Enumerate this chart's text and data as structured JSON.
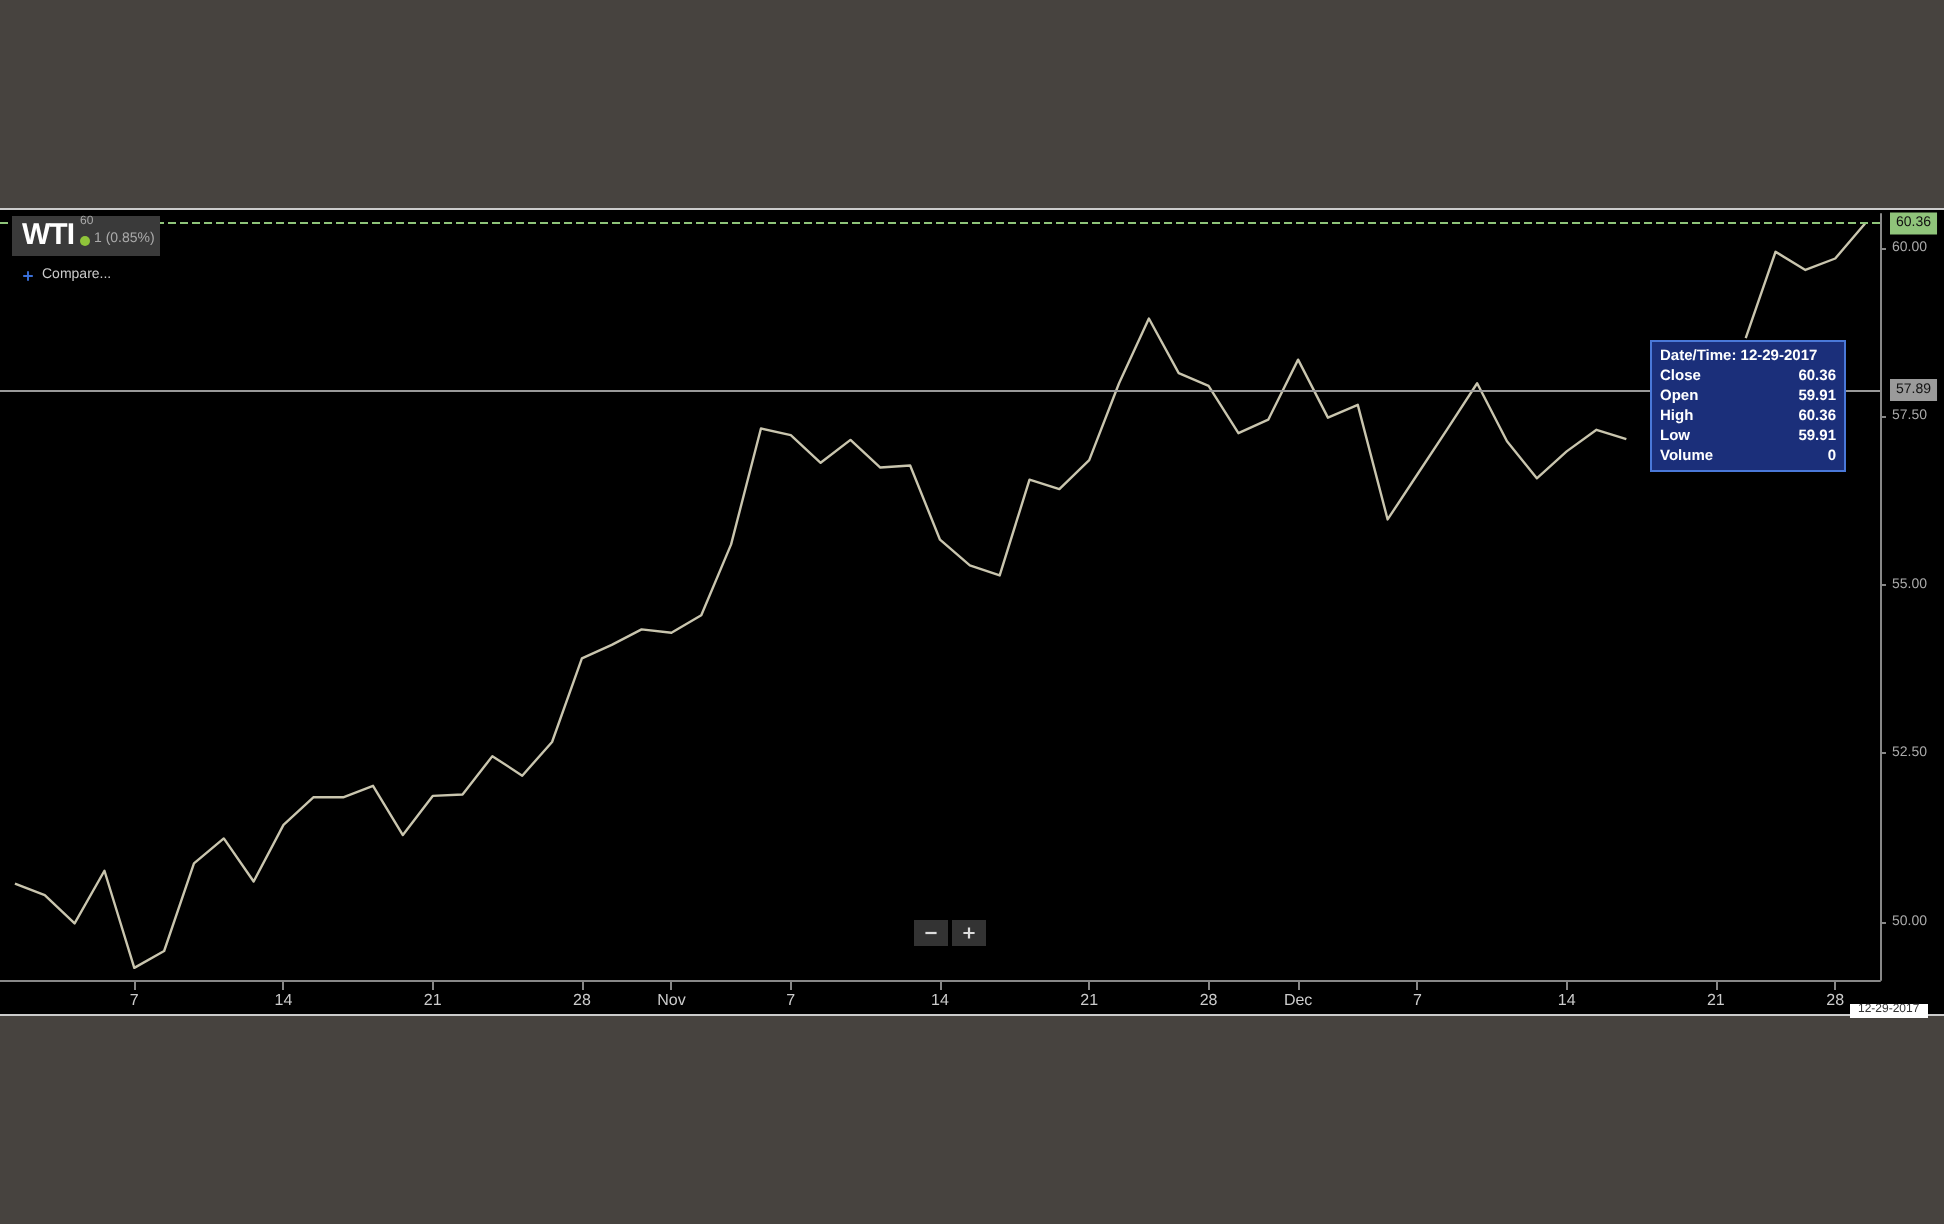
{
  "chart_data": {
    "type": "line",
    "title": "WTI",
    "subtitle": "60",
    "categories": [
      null,
      null,
      null,
      null,
      "7",
      null,
      null,
      null,
      null,
      "14",
      null,
      null,
      null,
      null,
      "21",
      null,
      null,
      null,
      null,
      "28",
      null,
      null,
      "Nov",
      null,
      null,
      null,
      "7",
      null,
      null,
      null,
      null,
      "14",
      null,
      null,
      null,
      null,
      "21",
      null,
      null,
      null,
      "28",
      null,
      null,
      "Dec",
      null,
      null,
      null,
      "7",
      null,
      null,
      null,
      null,
      "14",
      null,
      null,
      null,
      null,
      "21",
      null,
      null,
      null,
      "28",
      null
    ],
    "series": [
      {
        "color": "#c9c5ae",
        "values": [
          50.57,
          50.4,
          49.98,
          50.76,
          49.32,
          49.57,
          50.87,
          51.24,
          50.6,
          51.44,
          51.85,
          51.85,
          52.02,
          51.29,
          51.87,
          51.89,
          52.46,
          52.17,
          52.67,
          53.91,
          54.11,
          54.34,
          54.29,
          54.55,
          55.6,
          57.32,
          57.22,
          56.81,
          57.15,
          56.74,
          56.77,
          55.67,
          55.29,
          55.14,
          56.56,
          56.42,
          56.85,
          57.99,
          58.95,
          58.14,
          57.95,
          57.25,
          57.45,
          58.34,
          57.48,
          57.67,
          55.97,
          56.64,
          57.31,
          57.99,
          57.13,
          56.58,
          56.98,
          57.3,
          57.16,
          null,
          null,
          null,
          58.66,
          59.94,
          59.67,
          59.84,
          60.36
        ]
      }
    ],
    "ylim": [
      49.14,
      60.5
    ],
    "yticks": [
      {
        "value": 50,
        "label": "50.00"
      },
      {
        "value": 52.5,
        "label": "52.50"
      },
      {
        "value": 55,
        "label": "55.00"
      },
      {
        "value": 57.5,
        "label": "57.50"
      },
      {
        "value": 60,
        "label": "60.00"
      }
    ],
    "ref_lines": [
      {
        "axis": "y",
        "value": 60.36,
        "label": "60.36",
        "color": "#8fc47a",
        "line_style": "dashed"
      },
      {
        "axis": "y",
        "value": 57.89,
        "label": "57.89",
        "color": "#9a9a9a",
        "line_style": "solid"
      }
    ],
    "annotations": [
      "1 (0.85%)",
      "Compare...",
      "Date/Time: 12-29-2017\nClose\t60.36\nOpen\t59.91\nHigh\t60.36\nLow\t59.91\nVolume\t0",
      "12-29-2017"
    ],
    "marker": "none",
    "line_style": "solid"
  }
}
